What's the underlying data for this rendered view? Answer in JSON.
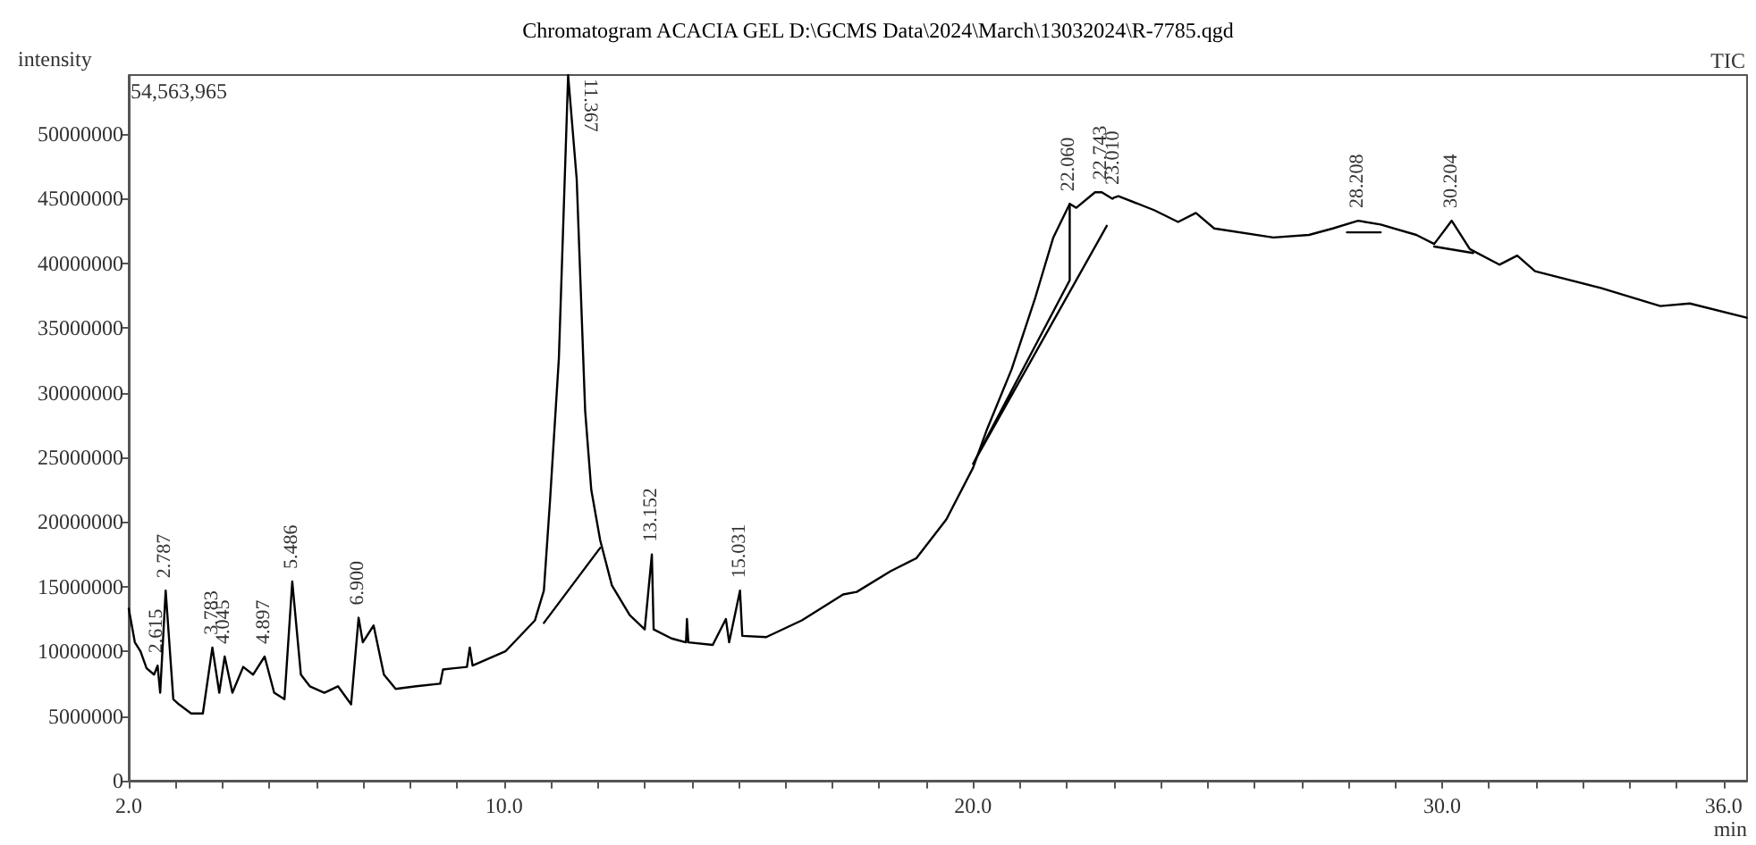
{
  "chart_data": {
    "type": "line",
    "title": "Chromatogram ACACIA GEL D:\\GCMS Data\\2024\\March\\13032024\\R-7785.qgd",
    "xlabel": "min",
    "ylabel": "intensity",
    "annotations": [
      "54,563,965",
      "TIC",
      {
        "text": "2.615",
        "x": 2.615,
        "y": 8900000
      },
      {
        "text": "2.787",
        "x": 2.787,
        "y": 14700000
      },
      {
        "text": "3.783",
        "x": 3.783,
        "y": 10300000
      },
      {
        "text": "4.045",
        "x": 4.045,
        "y": 9600000
      },
      {
        "text": "4.897",
        "x": 4.897,
        "y": 9600000
      },
      {
        "text": "5.486",
        "x": 5.486,
        "y": 15400000
      },
      {
        "text": "6.900",
        "x": 6.9,
        "y": 12600000
      },
      {
        "text": "11.367",
        "x": 11.367,
        "y": 54563965
      },
      {
        "text": "13.152",
        "x": 13.152,
        "y": 17500000
      },
      {
        "text": "15.031",
        "x": 15.031,
        "y": 14700000
      },
      {
        "text": "22.060",
        "x": 22.06,
        "y": 44600000
      },
      {
        "text": "22.743",
        "x": 22.743,
        "y": 45500000
      },
      {
        "text": "23.010",
        "x": 23.01,
        "y": 45100000
      },
      {
        "text": "28.208",
        "x": 28.208,
        "y": 43300000
      },
      {
        "text": "30.204",
        "x": 30.204,
        "y": 43300000
      }
    ],
    "xlim": [
      2,
      36.5
    ],
    "ylim": [
      0,
      54563965
    ],
    "xticks": [
      {
        "value": 2,
        "label": "2.0"
      },
      {
        "value": 3,
        "label": null
      },
      {
        "value": 4,
        "label": null
      },
      {
        "value": 5,
        "label": null
      },
      {
        "value": 6,
        "label": null
      },
      {
        "value": 7,
        "label": null
      },
      {
        "value": 8,
        "label": null
      },
      {
        "value": 9,
        "label": null
      },
      {
        "value": 10,
        "label": "10.0"
      },
      {
        "value": 11,
        "label": null
      },
      {
        "value": 12,
        "label": null
      },
      {
        "value": 13,
        "label": null
      },
      {
        "value": 14,
        "label": null
      },
      {
        "value": 15,
        "label": null
      },
      {
        "value": 16,
        "label": null
      },
      {
        "value": 17,
        "label": null
      },
      {
        "value": 18,
        "label": null
      },
      {
        "value": 19,
        "label": null
      },
      {
        "value": 20,
        "label": "20.0"
      },
      {
        "value": 21,
        "label": null
      },
      {
        "value": 22,
        "label": null
      },
      {
        "value": 23,
        "label": null
      },
      {
        "value": 24,
        "label": null
      },
      {
        "value": 25,
        "label": null
      },
      {
        "value": 26,
        "label": null
      },
      {
        "value": 27,
        "label": null
      },
      {
        "value": 28,
        "label": null
      },
      {
        "value": 29,
        "label": null
      },
      {
        "value": 30,
        "label": "30.0"
      },
      {
        "value": 31,
        "label": null
      },
      {
        "value": 32,
        "label": null
      },
      {
        "value": 33,
        "label": null
      },
      {
        "value": 34,
        "label": null
      },
      {
        "value": 35,
        "label": null
      },
      {
        "value": 36,
        "label": "36.0"
      }
    ],
    "yticks": [
      0,
      5000000,
      10000000,
      15000000,
      20000000,
      25000000,
      30000000,
      35000000,
      40000000,
      45000000,
      50000000
    ],
    "grid": false,
    "marker": "none",
    "line_style": "solid",
    "series": [
      {
        "color": "#000000",
        "x": [
          2.0,
          2.13,
          2.25,
          2.38,
          2.54,
          2.615,
          2.67,
          2.787,
          2.95,
          3.07,
          3.33,
          3.58,
          3.783,
          3.93,
          4.045,
          4.21,
          4.44,
          4.65,
          4.897,
          5.1,
          5.32,
          5.486,
          5.67,
          5.86,
          6.17,
          6.46,
          6.74,
          6.9,
          6.99,
          7.22,
          7.44,
          7.69,
          8.13,
          8.64,
          8.7,
          9.21,
          9.27,
          9.33,
          10.03,
          10.66,
          10.85,
          10.98,
          11.17,
          11.367,
          11.55,
          11.73,
          11.86,
          12.05,
          12.3,
          12.68,
          13.0,
          13.152,
          13.19,
          13.57,
          13.88,
          13.9,
          13.93,
          14.45,
          14.73,
          14.8,
          15.031,
          15.08,
          15.59,
          16.35,
          17.23,
          17.52,
          18.24,
          18.79,
          19.43,
          20.0,
          20.3,
          20.82,
          21.33,
          21.71,
          22.06,
          22.2,
          22.6,
          22.743,
          22.97,
          23.01,
          23.1,
          23.87,
          24.37,
          24.75,
          25.14,
          26.4,
          27.16,
          27.67,
          28.208,
          28.69,
          29.45,
          29.83,
          30.204,
          30.59,
          31.22,
          31.6,
          31.98,
          33.38,
          34.65,
          35.28,
          36.49
        ],
        "values": [
          13300000,
          10700000,
          10000000,
          8700000,
          8200000,
          8900000,
          6800000,
          14700000,
          6300000,
          5900000,
          5200000,
          5200000,
          10300000,
          6800000,
          9600000,
          6800000,
          8800000,
          8200000,
          9600000,
          6800000,
          6300000,
          15400000,
          8200000,
          7300000,
          6800000,
          7300000,
          5900000,
          12600000,
          10700000,
          12000000,
          8200000,
          7100000,
          7300000,
          7500000,
          8600000,
          8800000,
          10300000,
          8900000,
          10000000,
          12400000,
          14700000,
          21600000,
          32700000,
          54563965,
          46500000,
          28600000,
          22500000,
          18600000,
          15100000,
          12800000,
          11700000,
          17500000,
          11700000,
          11000000,
          10700000,
          12500000,
          10700000,
          10500000,
          12500000,
          10700000,
          14700000,
          11200000,
          11100000,
          12400000,
          14400000,
          14600000,
          16200000,
          17200000,
          20200000,
          24200000,
          27200000,
          31800000,
          37400000,
          42000000,
          44600000,
          44300000,
          45500000,
          45500000,
          45000000,
          45100000,
          45200000,
          44100000,
          43200000,
          43900000,
          42700000,
          42000000,
          42200000,
          42700000,
          43300000,
          43000000,
          42200000,
          41500000,
          43300000,
          41100000,
          39900000,
          40600000,
          39400000,
          38100000,
          36700000,
          36900000,
          35800000
        ]
      },
      {
        "color": "#000000",
        "x": [
          10.85,
          12.05,
          null,
          22.06,
          20.0,
          22.85,
          null,
          22.06,
          22.06,
          null,
          27.97,
          28.69,
          null,
          29.83,
          30.66
        ],
        "values": [
          12200000,
          18000000,
          null,
          38700000,
          24500000,
          42900000,
          null,
          44600000,
          38700000,
          null,
          42400000,
          42400000,
          null,
          41300000,
          40800000
        ]
      }
    ]
  }
}
